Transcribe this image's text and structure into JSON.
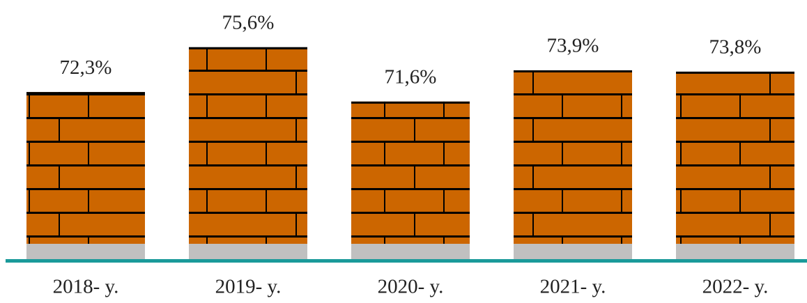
{
  "chart_data": {
    "type": "bar",
    "categories": [
      "2018- y.",
      "2019- y.",
      "2020- y.",
      "2021- y.",
      "2022- y."
    ],
    "values": [
      72.3,
      75.6,
      71.6,
      73.9,
      73.8
    ],
    "value_labels": [
      "72,3%",
      "75,6%",
      "71,6%",
      "73,9%",
      "73,8%"
    ],
    "color": "#cc6600",
    "ylim": [
      60,
      76
    ]
  }
}
